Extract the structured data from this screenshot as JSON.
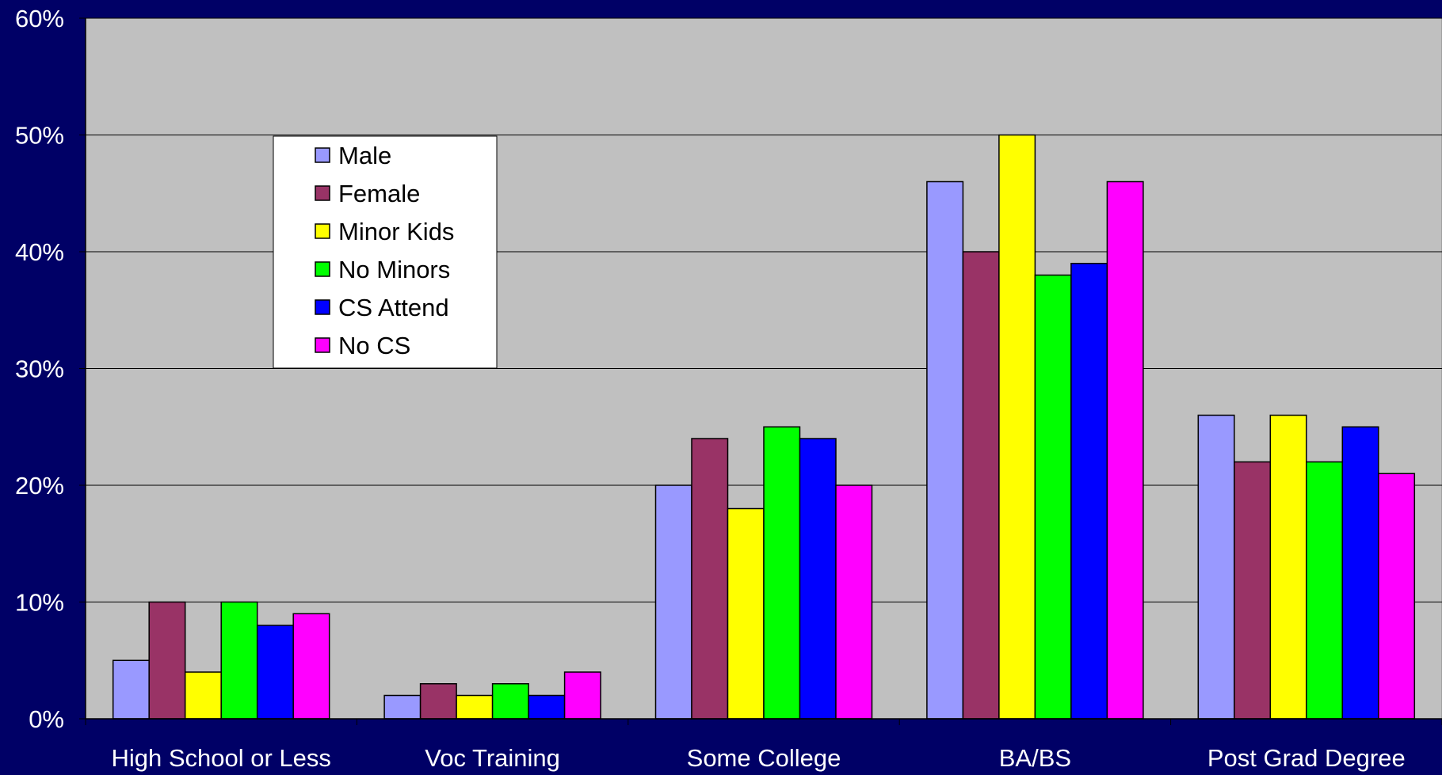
{
  "chart_data": {
    "type": "bar",
    "categories": [
      "High School or Less",
      "Voc Training",
      "Some College",
      "BA/BS",
      "Post Grad Degree"
    ],
    "series": [
      {
        "name": "Male",
        "color": "#9999FF",
        "values": [
          5,
          2,
          20,
          46,
          26
        ]
      },
      {
        "name": "Female",
        "color": "#993366",
        "values": [
          10,
          3,
          24,
          40,
          22
        ]
      },
      {
        "name": "Minor Kids",
        "color": "#FFFF00",
        "values": [
          4,
          2,
          18,
          50,
          26
        ]
      },
      {
        "name": "No Minors",
        "color": "#00FF00",
        "values": [
          10,
          3,
          25,
          38,
          22
        ]
      },
      {
        "name": "CS Attend",
        "color": "#0000FF",
        "values": [
          8,
          2,
          24,
          39,
          25
        ]
      },
      {
        "name": "No CS",
        "color": "#FF00FF",
        "values": [
          9,
          4,
          20,
          46,
          21
        ]
      }
    ],
    "yticks": [
      "0%",
      "10%",
      "20%",
      "30%",
      "40%",
      "50%",
      "60%"
    ],
    "ylim": [
      0,
      60
    ],
    "grid": true,
    "legend": "upper-left",
    "colors": {
      "background": "#000066",
      "plot_area": "#C0C0C0",
      "legend_bg": "#FFFFFF"
    }
  }
}
